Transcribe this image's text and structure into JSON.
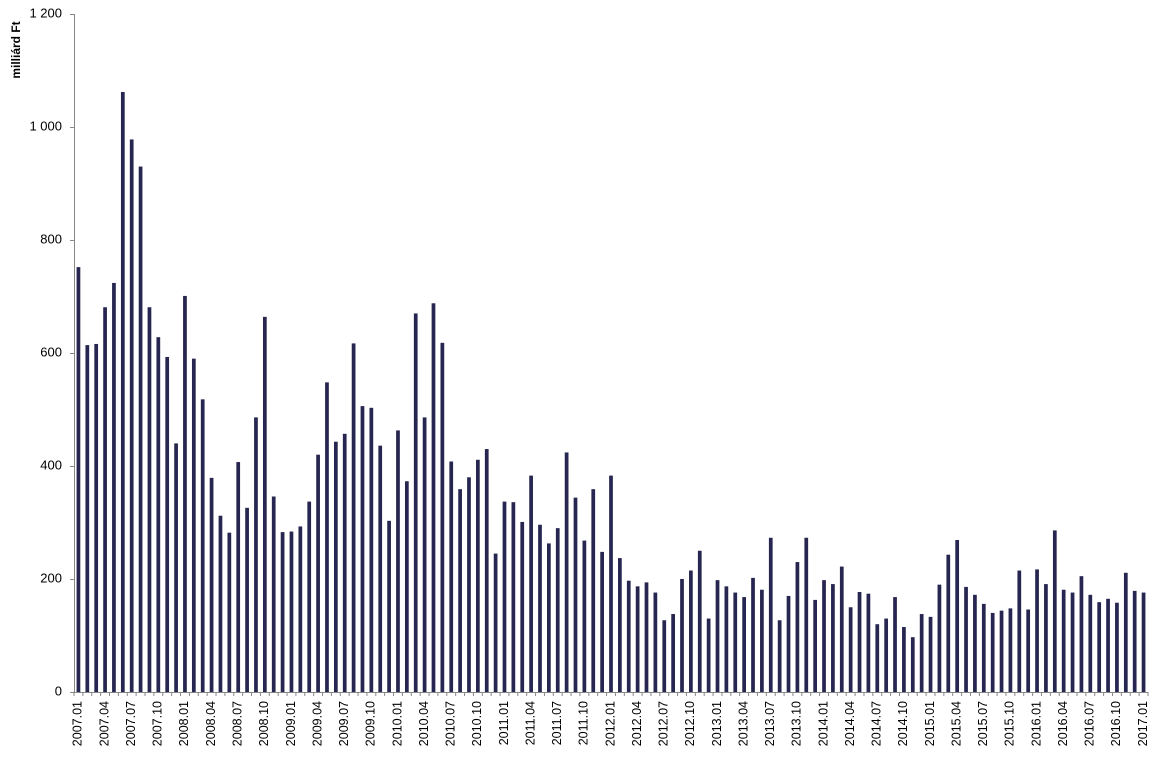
{
  "chart_data": {
    "type": "bar",
    "title": "",
    "xlabel": "",
    "ylabel": "milliárd Ft",
    "ylim": [
      0,
      1200
    ],
    "yticks": [
      0,
      200,
      400,
      600,
      800,
      1000,
      1200
    ],
    "yticklabels": [
      "0",
      "200",
      "400",
      "600",
      "800",
      "1 000",
      "1 200"
    ],
    "grid": false,
    "legend": "none",
    "bar_color": "#262650",
    "categories": [
      "2007.01",
      "2007.02",
      "2007.03",
      "2007.04",
      "2007.05",
      "2007.06",
      "2007.07",
      "2007.08",
      "2007.09",
      "2007.10",
      "2007.11",
      "2007.12",
      "2008.01",
      "2008.02",
      "2008.03",
      "2008.04",
      "2008.05",
      "2008.06",
      "2008.07",
      "2008.08",
      "2008.09",
      "2008.10",
      "2008.11",
      "2008.12",
      "2009.01",
      "2009.02",
      "2009.03",
      "2009.04",
      "2009.05",
      "2009.06",
      "2009.07",
      "2009.08",
      "2009.09",
      "2009.10",
      "2009.11",
      "2009.12",
      "2010.01",
      "2010.02",
      "2010.03",
      "2010.04",
      "2010.05",
      "2010.06",
      "2010.07",
      "2010.08",
      "2010.09",
      "2010.10",
      "2010.11",
      "2010.12",
      "2011.01",
      "2011.02",
      "2011.03",
      "2011.04",
      "2011.05",
      "2011.06",
      "2011.07",
      "2011.08",
      "2011.09",
      "2011.10",
      "2011.11",
      "2011.12",
      "2012.01",
      "2012.02",
      "2012.03",
      "2012.04",
      "2012.05",
      "2012.06",
      "2012.07",
      "2012.08",
      "2012.09",
      "2012.10",
      "2012.11",
      "2012.12",
      "2013.01",
      "2013.02",
      "2013.03",
      "2013.04",
      "2013.05",
      "2013.06",
      "2013.07",
      "2013.08",
      "2013.09",
      "2013.10",
      "2013.11",
      "2013.12",
      "2014.01",
      "2014.02",
      "2014.03",
      "2014.04",
      "2014.05",
      "2014.06",
      "2014.07",
      "2014.08",
      "2014.09",
      "2014.10",
      "2014.11",
      "2014.12",
      "2015.01",
      "2015.02",
      "2015.03",
      "2015.04",
      "2015.05",
      "2015.06",
      "2015.07",
      "2015.08",
      "2015.09",
      "2015.10",
      "2015.11",
      "2015.12",
      "2016.01",
      "2016.02",
      "2016.03",
      "2016.04",
      "2016.05",
      "2016.06",
      "2016.07",
      "2016.08",
      "2016.09",
      "2016.10",
      "2016.11",
      "2016.12",
      "2017.01"
    ],
    "values": [
      752,
      614,
      616,
      681,
      724,
      1062,
      978,
      930,
      681,
      628,
      593,
      440,
      701,
      590,
      518,
      379,
      312,
      282,
      407,
      326,
      486,
      664,
      346,
      283,
      284,
      293,
      337,
      420,
      548,
      443,
      457,
      617,
      506,
      503,
      436,
      303,
      463,
      373,
      670,
      486,
      688,
      618,
      408,
      359,
      380,
      411,
      430,
      245,
      337,
      336,
      301,
      383,
      296,
      263,
      290,
      424,
      344,
      268,
      359,
      248,
      383,
      237,
      197,
      187,
      194,
      176,
      127,
      138,
      200,
      215,
      250,
      130,
      198,
      187,
      176,
      168,
      202,
      181,
      273,
      127,
      170,
      230,
      273,
      163,
      198,
      191,
      222,
      150,
      177,
      174,
      120,
      130,
      168,
      115,
      97,
      138,
      133,
      190,
      243,
      269,
      186,
      172,
      156,
      140,
      144,
      148,
      215,
      146,
      217,
      191,
      286,
      181,
      176,
      205,
      172,
      159,
      165,
      158,
      211,
      179,
      176
    ],
    "xtick_every": 3
  }
}
